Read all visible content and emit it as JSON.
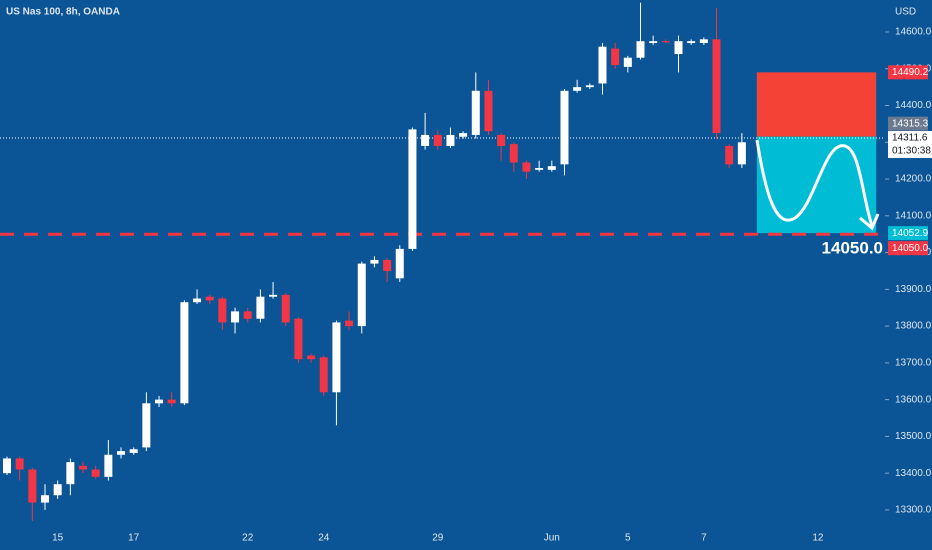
{
  "chart_data": {
    "type": "candlestick",
    "title": "US Nas 100, 8h, OANDA",
    "y_axis_label": "USD",
    "background": "#0b5495",
    "up_color": "#ffffff",
    "down_color": "#f23645",
    "categories": [
      null,
      null,
      null,
      null,
      "15",
      null,
      null,
      null,
      null,
      null,
      "17",
      null,
      null,
      null,
      null,
      null,
      null,
      null,
      null,
      "22",
      null,
      null,
      null,
      null,
      null,
      "24",
      null,
      null,
      null,
      null,
      null,
      null,
      null,
      null,
      "29",
      null,
      null,
      null,
      null,
      null,
      null,
      null,
      null,
      "Jun",
      null,
      null,
      null,
      null,
      null,
      "5",
      null,
      null,
      null,
      null,
      null,
      "7",
      null,
      null,
      null,
      null,
      null,
      null,
      null,
      null,
      "12",
      null,
      null,
      null,
      null,
      null
    ],
    "open": [
      13400,
      13440,
      13410,
      13320,
      13340,
      13370,
      13420,
      13410,
      13390,
      13450,
      13455,
      13470,
      13590,
      13600,
      13590,
      13865,
      13880,
      13875,
      13810,
      13840,
      13820,
      13880,
      13885,
      13820,
      13720,
      13715,
      13620,
      13815,
      13800,
      13970,
      13980,
      13930,
      14010,
      14290,
      14320,
      14290,
      14315,
      14320,
      14440,
      14320,
      14295,
      14245,
      14225,
      14225,
      14240,
      14440,
      14450,
      14460,
      14555,
      14505,
      14530,
      14570,
      14575,
      14540,
      14570,
      14570,
      14580,
      14290,
      14240,
      null,
      null,
      null,
      null,
      null,
      null,
      null,
      null,
      null,
      null,
      null
    ],
    "high": [
      13445,
      13445,
      13415,
      13370,
      13380,
      13440,
      13430,
      13420,
      13490,
      13470,
      13470,
      13620,
      13610,
      13620,
      13870,
      13900,
      13885,
      13880,
      13850,
      13850,
      13900,
      13920,
      13890,
      13825,
      13725,
      13720,
      13815,
      13840,
      13975,
      13990,
      13985,
      14020,
      14340,
      14380,
      14330,
      14340,
      14330,
      14490,
      14470,
      14325,
      14300,
      14250,
      14250,
      14250,
      14445,
      14470,
      14460,
      14570,
      14570,
      14535,
      14680,
      14590,
      14580,
      14590,
      14580,
      14585,
      14665,
      14295,
      14325,
      null,
      null,
      null,
      null,
      null,
      null,
      null,
      null,
      null,
      null,
      null
    ],
    "low": [
      13395,
      13380,
      13270,
      13300,
      13330,
      13340,
      13400,
      13385,
      13380,
      13440,
      13450,
      13460,
      13580,
      13580,
      13585,
      13860,
      13860,
      13790,
      13780,
      13810,
      13810,
      13875,
      13800,
      13700,
      13700,
      13610,
      13530,
      13790,
      13780,
      13960,
      13920,
      13920,
      14005,
      14280,
      14280,
      14285,
      14310,
      14310,
      14320,
      14250,
      14220,
      14200,
      14220,
      14220,
      14210,
      14435,
      14445,
      14430,
      14500,
      14490,
      14525,
      14565,
      14570,
      14490,
      14565,
      14565,
      14310,
      14230,
      14230,
      null,
      null,
      null,
      null,
      null,
      null,
      null,
      null,
      null,
      null,
      null
    ],
    "close": [
      13440,
      13410,
      13320,
      13340,
      13370,
      13430,
      13410,
      13390,
      13450,
      13460,
      13465,
      13590,
      13600,
      13590,
      13865,
      13875,
      13870,
      13810,
      13840,
      13820,
      13880,
      13885,
      13810,
      13710,
      13710,
      13620,
      13810,
      13800,
      13970,
      13980,
      13950,
      14010,
      14335,
      14320,
      14290,
      14320,
      14325,
      14440,
      14330,
      14290,
      14245,
      14220,
      14230,
      14235,
      14440,
      14450,
      14455,
      14560,
      14510,
      14530,
      14575,
      14575,
      14572,
      14575,
      14575,
      14580,
      14325,
      14240,
      14300,
      null,
      null,
      null,
      null,
      null,
      null,
      null,
      null,
      null,
      null,
      null
    ],
    "ylim": [
      13259,
      14687
    ],
    "yticks": [
      {
        "value": 13300,
        "label": "13300.0"
      },
      {
        "value": 13400,
        "label": "13400.0"
      },
      {
        "value": 13500,
        "label": "13500.0"
      },
      {
        "value": 13600,
        "label": "13600.0"
      },
      {
        "value": 13700,
        "label": "13700.0"
      },
      {
        "value": 13800,
        "label": "13800.0"
      },
      {
        "value": 13900,
        "label": "13900.0"
      },
      {
        "value": 14000,
        "label": "14000.0"
      },
      {
        "value": 14100,
        "label": "14100.0"
      },
      {
        "value": 14200,
        "label": "14200.0"
      },
      {
        "value": 14300,
        "label": "14300.0"
      },
      {
        "value": 14400,
        "label": "14400.0"
      },
      {
        "value": 14500,
        "label": "14500.0"
      },
      {
        "value": 14600,
        "label": "14600.0"
      }
    ],
    "last_price": {
      "value": 14311.6,
      "label": "14311.6",
      "countdown": "01:30:38"
    },
    "position": {
      "stop": 14490.2,
      "entry": 14315.3,
      "target": 14052.9,
      "stop_color": "#f44336",
      "target_color": "#00bcd4"
    },
    "target_line": {
      "value": 14050.0,
      "label": "14050.0",
      "color": "#f23645"
    },
    "price_tags": [
      {
        "value": 14490.2,
        "label": "14490.2",
        "color": "#f23645"
      },
      {
        "value": 14315.3,
        "label": "14315.3",
        "color": "#6b7a8f"
      },
      {
        "value": 14052.9,
        "label": "14052.9",
        "color": "#00bcd4"
      },
      {
        "value": 14050.0,
        "label": "14050.0",
        "color": "#f23645"
      }
    ]
  }
}
